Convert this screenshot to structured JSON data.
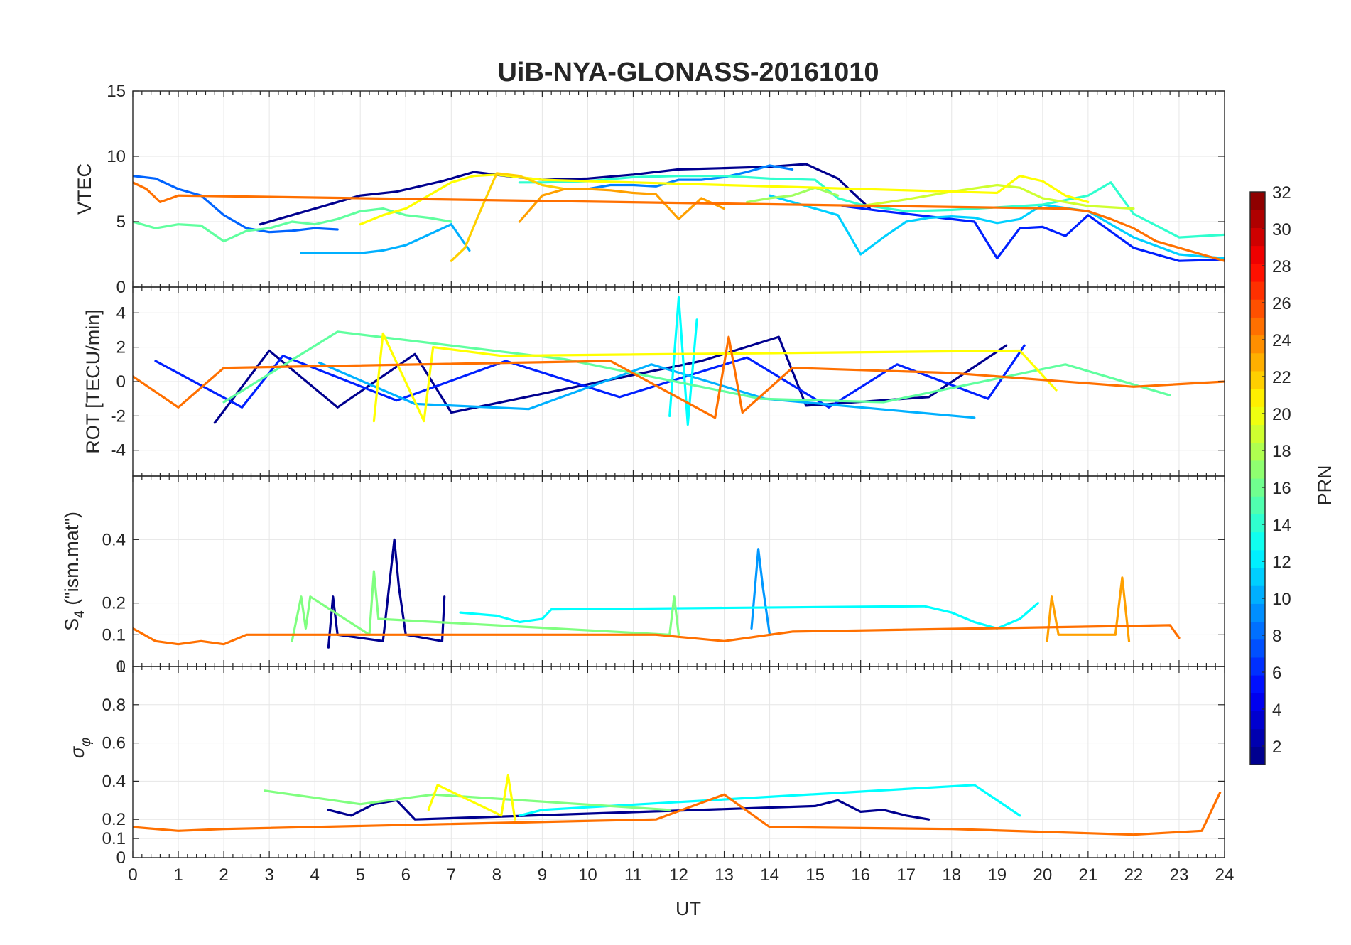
{
  "chart_data": {
    "type": "line",
    "title": "UiB-NYA-GLONASS-20161010",
    "xlabel": "UT",
    "xlim": [
      0,
      24
    ],
    "x_ticks": [
      "0",
      "1",
      "2",
      "3",
      "4",
      "5",
      "6",
      "7",
      "8",
      "9",
      "10",
      "11",
      "12",
      "13",
      "14",
      "15",
      "16",
      "17",
      "18",
      "19",
      "20",
      "21",
      "22",
      "23",
      "24"
    ],
    "grid": true,
    "colormap": "jet",
    "colorbar": {
      "label": "PRN",
      "range": [
        1,
        32
      ],
      "ticks": [
        "2",
        "4",
        "6",
        "8",
        "10",
        "12",
        "14",
        "16",
        "18",
        "20",
        "22",
        "24",
        "26",
        "28",
        "30",
        "32"
      ],
      "placement": "right"
    },
    "panels": [
      {
        "id": "vtec",
        "ylabel": "VTEC",
        "ylim": [
          0,
          15
        ],
        "y_ticks": [
          "0",
          "5",
          "10",
          "15"
        ],
        "series": [
          {
            "prn": 1,
            "color": "#00008f",
            "x": [
              2.8,
              3.5,
              4.2,
              5.0,
              5.8,
              6.8,
              7.5,
              8.2,
              9.0,
              10.0,
              11.0,
              12.0,
              13.0,
              14.0,
              14.8,
              15.5,
              16.2
            ],
            "values": [
              4.8,
              5.5,
              6.2,
              7.0,
              7.3,
              8.1,
              8.8,
              8.5,
              8.2,
              8.3,
              8.6,
              9.0,
              9.1,
              9.2,
              9.4,
              8.3,
              6.0
            ]
          },
          {
            "prn": 4,
            "color": "#0020ff",
            "x": [
              15.6,
              16.5,
              17.5,
              18.5,
              19.0,
              19.5,
              20.0,
              20.5,
              21.0,
              22.0,
              23.0,
              24.0
            ],
            "values": [
              6.2,
              5.8,
              5.4,
              5.0,
              2.2,
              4.5,
              4.6,
              3.9,
              5.5,
              3.0,
              2.0,
              2.1
            ]
          },
          {
            "prn": 7,
            "color": "#0064ff",
            "x": [
              0.0,
              0.5,
              1.0,
              1.5,
              2.0,
              2.5,
              3.0,
              3.5,
              4.0,
              4.5
            ],
            "values": [
              8.5,
              8.3,
              7.5,
              7.0,
              5.5,
              4.5,
              4.2,
              4.3,
              4.5,
              4.4
            ]
          },
          {
            "prn": 8,
            "color": "#0080ff",
            "x": [
              10.0,
              10.5,
              11.0,
              11.5,
              12.0,
              12.5,
              13.0,
              13.5,
              14.0,
              14.5
            ],
            "values": [
              7.5,
              7.8,
              7.8,
              7.7,
              8.2,
              8.2,
              8.4,
              8.8,
              9.3,
              9.0
            ]
          },
          {
            "prn": 10,
            "color": "#00b0ff",
            "x": [
              3.7,
              4.5,
              5.0,
              5.5,
              6.0,
              6.5,
              7.0,
              7.4
            ],
            "values": [
              2.6,
              2.6,
              2.6,
              2.8,
              3.2,
              4.0,
              4.8,
              2.8
            ]
          },
          {
            "prn": 11,
            "color": "#00d0ff",
            "x": [
              14.0,
              14.5,
              15.0,
              15.5,
              16.0,
              16.5,
              17.0,
              17.5,
              18.0,
              18.5,
              19.0,
              19.5,
              20.0,
              21.0,
              22.0,
              23.0,
              24.0
            ],
            "values": [
              7.0,
              6.5,
              6.0,
              5.5,
              2.5,
              3.8,
              5.0,
              5.3,
              5.4,
              5.3,
              4.9,
              5.2,
              6.3,
              5.8,
              3.8,
              2.5,
              2.2
            ]
          },
          {
            "prn": 14,
            "color": "#30ffcf",
            "x": [
              8.5,
              9.0,
              10.0,
              11.0,
              12.0,
              13.0,
              14.0,
              15.0,
              15.5,
              16.0,
              17.0,
              18.0,
              19.0,
              20.0,
              21.0,
              21.5,
              22.0,
              23.0,
              24.0
            ],
            "values": [
              8.0,
              8.0,
              8.1,
              8.4,
              8.5,
              8.5,
              8.3,
              8.2,
              6.8,
              6.3,
              5.8,
              5.9,
              6.1,
              6.3,
              7.0,
              8.0,
              5.6,
              3.8,
              4.0
            ]
          },
          {
            "prn": 16,
            "color": "#60ff9f",
            "x": [
              0.0,
              0.5,
              1.0,
              1.5,
              2.0,
              2.5,
              3.0,
              3.5,
              4.0,
              4.5,
              5.0,
              5.5,
              6.0,
              6.5,
              7.0
            ],
            "values": [
              5.0,
              4.5,
              4.8,
              4.7,
              3.5,
              4.3,
              4.5,
              5.0,
              4.8,
              5.2,
              5.8,
              6.0,
              5.5,
              5.3,
              5.0
            ]
          },
          {
            "prn": 18,
            "color": "#a0ff60",
            "x": [
              13.5,
              14.0,
              14.5,
              15.0,
              15.5
            ],
            "values": [
              6.5,
              6.8,
              7.0,
              7.6,
              7.0
            ]
          },
          {
            "prn": 19,
            "color": "#cfff30",
            "x": [
              16.0,
              17.0,
              18.0,
              19.0,
              19.5,
              20.0,
              21.0,
              22.0
            ],
            "values": [
              6.2,
              6.7,
              7.3,
              7.8,
              7.6,
              6.8,
              6.2,
              6.0
            ]
          },
          {
            "prn": 20,
            "color": "#ffff00",
            "x": [
              5.0,
              5.5,
              6.0,
              6.5,
              7.0,
              7.5,
              8.0,
              8.5,
              9.0,
              19.0,
              19.5,
              20.0,
              20.5,
              21.0
            ],
            "values": [
              4.8,
              5.5,
              6.0,
              7.0,
              8.0,
              8.5,
              8.6,
              8.4,
              8.2,
              7.2,
              8.5,
              8.1,
              7.0,
              6.5
            ]
          },
          {
            "prn": 21,
            "color": "#ffd000",
            "x": [
              7.0,
              7.3,
              7.6,
              8.0,
              8.5,
              9.0,
              9.5
            ],
            "values": [
              2.0,
              3.0,
              5.5,
              8.7,
              8.5,
              7.8,
              7.5
            ]
          },
          {
            "prn": 22,
            "color": "#ffa000",
            "x": [
              8.5,
              9.0,
              9.5,
              10.0,
              10.5,
              11.0,
              11.5,
              12.0,
              12.5,
              13.0
            ],
            "values": [
              5.0,
              7.0,
              7.5,
              7.5,
              7.4,
              7.2,
              7.1,
              5.2,
              6.8,
              6.0
            ]
          },
          {
            "prn": 24,
            "color": "#ff7000",
            "x": [
              0.0,
              0.3,
              0.6,
              1.0,
              20.5,
              21.0,
              21.5,
              22.0,
              22.5,
              23.0,
              23.5,
              24.0
            ],
            "values": [
              8.0,
              7.5,
              6.5,
              7.0,
              6.0,
              5.8,
              5.2,
              4.5,
              3.5,
              3.0,
              2.5,
              2.0
            ]
          }
        ]
      },
      {
        "id": "rot",
        "ylabel": "ROT [TECU/min]",
        "ylim": [
          -5.5,
          5.5
        ],
        "y_ticks": [
          "-4",
          "-2",
          "0",
          "2",
          "4"
        ],
        "series": [
          {
            "prn": 1,
            "color": "#00008f",
            "x": [
              1.8,
              3.0,
              4.5,
              6.2,
              7.0,
              12.5,
              14.2,
              14.8,
              17.5,
              19.2
            ],
            "values": [
              -2.4,
              1.8,
              -1.5,
              1.6,
              -1.8,
              1.2,
              2.6,
              -1.4,
              -0.9,
              2.1
            ]
          },
          {
            "prn": 4,
            "color": "#0020ff",
            "x": [
              0.5,
              2.4,
              3.3,
              5.8,
              8.2,
              10.7,
              13.5,
              15.3,
              16.8,
              18.8,
              19.6
            ],
            "values": [
              1.2,
              -1.5,
              1.5,
              -1.1,
              1.2,
              -0.9,
              1.4,
              -1.5,
              1.0,
              -1.0,
              2.1
            ]
          },
          {
            "prn": 10,
            "color": "#00b0ff",
            "x": [
              4.1,
              6.2,
              8.7,
              11.4,
              13.9,
              18.5
            ],
            "values": [
              1.1,
              -1.3,
              -1.6,
              1.0,
              -1.0,
              -2.1
            ]
          },
          {
            "prn": 13,
            "color": "#00ffff",
            "x": [
              11.8,
              12.0,
              12.2,
              12.4
            ],
            "values": [
              -2.0,
              4.9,
              -2.5,
              3.6
            ]
          },
          {
            "prn": 16,
            "color": "#60ff9f",
            "x": [
              2.0,
              4.5,
              9.5,
              13.8,
              16.5,
              20.5,
              22.8
            ],
            "values": [
              -1.2,
              2.9,
              1.3,
              -1.0,
              -1.2,
              1.0,
              -0.8
            ]
          },
          {
            "prn": 20,
            "color": "#ffff00",
            "x": [
              5.3,
              5.5,
              6.4,
              6.6,
              8.1,
              19.5,
              20.3
            ],
            "values": [
              -2.3,
              2.8,
              -2.3,
              2.0,
              1.5,
              1.8,
              -0.5
            ]
          },
          {
            "prn": 24,
            "color": "#ff7000",
            "x": [
              0.0,
              1.0,
              2.0,
              10.5,
              12.8,
              13.1,
              13.4,
              14.5,
              18.0,
              22.0,
              24.0
            ],
            "values": [
              0.3,
              -1.5,
              0.8,
              1.2,
              -2.1,
              2.6,
              -1.8,
              0.8,
              0.5,
              -0.3,
              0.0
            ]
          }
        ]
      },
      {
        "id": "s4",
        "ylabel": "S4 (\"ism.mat\")",
        "ylim": [
          0,
          0.6
        ],
        "y_ticks": [
          "0",
          "0.1",
          "0.2",
          "0.4"
        ],
        "series": [
          {
            "prn": 1,
            "color": "#00008f",
            "x": [
              4.3,
              4.4,
              4.5,
              5.5,
              5.75,
              5.85,
              6.0,
              6.8,
              6.85
            ],
            "values": [
              0.06,
              0.22,
              0.1,
              0.08,
              0.4,
              0.25,
              0.1,
              0.08,
              0.22
            ]
          },
          {
            "prn": 9,
            "color": "#0098ff",
            "x": [
              13.6,
              13.75,
              13.85,
              14.0
            ],
            "values": [
              0.12,
              0.37,
              0.25,
              0.1
            ]
          },
          {
            "prn": 13,
            "color": "#00ffff",
            "x": [
              7.2,
              8.0,
              8.5,
              9.0,
              9.2,
              17.4,
              18.0,
              18.5,
              19.0,
              19.5,
              19.9
            ],
            "values": [
              0.17,
              0.16,
              0.14,
              0.15,
              0.18,
              0.19,
              0.17,
              0.14,
              0.12,
              0.15,
              0.2
            ]
          },
          {
            "prn": 17,
            "color": "#80ff80",
            "x": [
              3.5,
              3.7,
              3.8,
              3.9,
              5.2,
              5.3,
              5.4,
              11.8,
              11.9,
              12.0
            ],
            "values": [
              0.08,
              0.22,
              0.12,
              0.22,
              0.1,
              0.3,
              0.15,
              0.1,
              0.22,
              0.1
            ]
          },
          {
            "prn": 22,
            "color": "#ffa000",
            "x": [
              20.1,
              20.2,
              20.35,
              21.6,
              21.75,
              21.9
            ],
            "values": [
              0.08,
              0.22,
              0.1,
              0.1,
              0.28,
              0.08
            ]
          },
          {
            "prn": 24,
            "color": "#ff7000",
            "x": [
              0.0,
              0.5,
              1.0,
              1.5,
              2.0,
              2.5,
              11.5,
              13.0,
              14.5,
              22.8,
              23.0
            ],
            "values": [
              0.12,
              0.08,
              0.07,
              0.08,
              0.07,
              0.1,
              0.1,
              0.08,
              0.11,
              0.13,
              0.09
            ]
          }
        ]
      },
      {
        "id": "sigma_phi",
        "ylabel": "σφ",
        "ylim": [
          0,
          1
        ],
        "y_ticks": [
          "0",
          "0.1",
          "0.2",
          "0.4",
          "0.6",
          "0.8",
          "1"
        ],
        "series": [
          {
            "prn": 1,
            "color": "#00008f",
            "x": [
              4.3,
              4.8,
              5.3,
              5.8,
              6.2,
              15.0,
              15.5,
              16.0,
              16.5,
              17.0,
              17.5
            ],
            "values": [
              0.25,
              0.22,
              0.28,
              0.3,
              0.2,
              0.27,
              0.3,
              0.24,
              0.25,
              0.22,
              0.2
            ]
          },
          {
            "prn": 13,
            "color": "#00ffff",
            "x": [
              8.5,
              9.0,
              18.5,
              19.5
            ],
            "values": [
              0.22,
              0.25,
              0.38,
              0.22
            ]
          },
          {
            "prn": 17,
            "color": "#80ff80",
            "x": [
              2.9,
              5.0,
              6.6,
              11.8
            ],
            "values": [
              0.35,
              0.28,
              0.33,
              0.25
            ]
          },
          {
            "prn": 20,
            "color": "#ffff00",
            "x": [
              6.5,
              6.7,
              8.1,
              8.25,
              8.4
            ],
            "values": [
              0.25,
              0.38,
              0.22,
              0.43,
              0.2
            ]
          },
          {
            "prn": 24,
            "color": "#ff7000",
            "x": [
              0.0,
              1.0,
              2.0,
              11.5,
              13.0,
              14.0,
              18.0,
              22.0,
              23.5,
              23.9
            ],
            "values": [
              0.16,
              0.14,
              0.15,
              0.2,
              0.33,
              0.16,
              0.15,
              0.12,
              0.14,
              0.34
            ]
          }
        ]
      }
    ]
  }
}
